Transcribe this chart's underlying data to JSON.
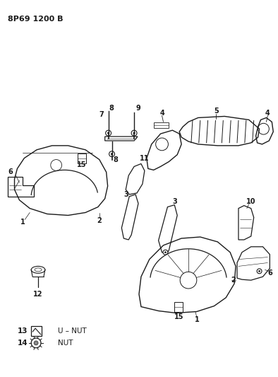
{
  "title": "8P69 1200 B",
  "bg_color": "#ffffff",
  "line_color": "#1a1a1a",
  "text_color": "#1a1a1a",
  "fig_width": 3.94,
  "fig_height": 5.33,
  "dpi": 100
}
